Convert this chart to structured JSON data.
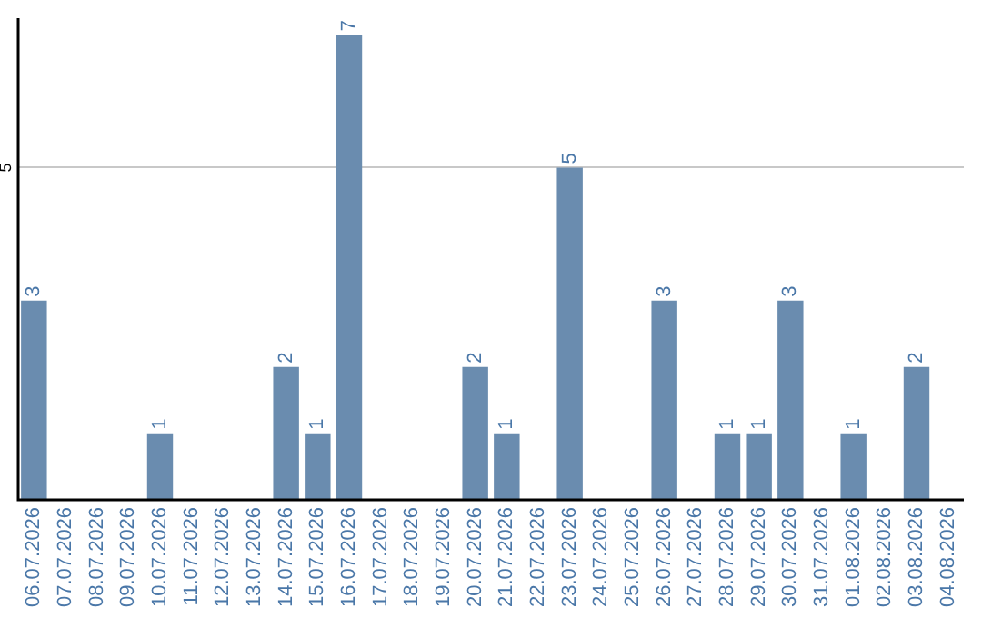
{
  "chart_data": {
    "type": "bar",
    "categories": [
      "06.07.2026",
      "07.07.2026",
      "08.07.2026",
      "09.07.2026",
      "10.07.2026",
      "11.07.2026",
      "12.07.2026",
      "13.07.2026",
      "14.07.2026",
      "15.07.2026",
      "16.07.2026",
      "17.07.2026",
      "18.07.2026",
      "19.07.2026",
      "20.07.2026",
      "21.07.2026",
      "22.07.2026",
      "23.07.2026",
      "24.07.2026",
      "25.07.2026",
      "26.07.2026",
      "27.07.2026",
      "28.07.2026",
      "29.07.2026",
      "30.07.2026",
      "31.07.2026",
      "01.08.2026",
      "02.08.2026",
      "03.08.2026",
      "04.08.2026"
    ],
    "values": [
      3,
      0,
      0,
      0,
      1,
      0,
      0,
      0,
      2,
      1,
      7,
      0,
      0,
      0,
      2,
      1,
      0,
      5,
      0,
      0,
      3,
      0,
      1,
      1,
      3,
      0,
      1,
      0,
      2,
      0
    ],
    "value_labels": [
      "3",
      null,
      null,
      null,
      "1",
      null,
      null,
      null,
      "2",
      "1",
      "7",
      null,
      null,
      null,
      "2",
      "1",
      null,
      "5",
      null,
      null,
      "3",
      null,
      "1",
      "1",
      "3",
      null,
      "1",
      null,
      "2",
      null
    ],
    "color": "#6a8caf",
    "ylim": [
      0,
      7.25
    ],
    "yticks": [
      5
    ],
    "grid": "y"
  }
}
